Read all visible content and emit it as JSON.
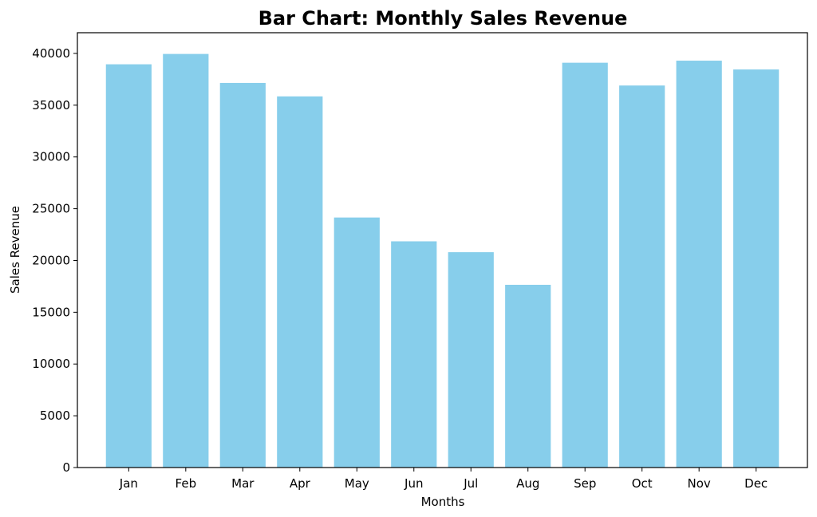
{
  "chart_data": {
    "type": "bar",
    "title": "Bar Chart: Monthly Sales Revenue",
    "xlabel": "Months",
    "ylabel": "Sales Revenue",
    "categories": [
      "Jan",
      "Feb",
      "Mar",
      "Apr",
      "May",
      "Jun",
      "Jul",
      "Aug",
      "Sep",
      "Oct",
      "Nov",
      "Dec"
    ],
    "values": [
      38950,
      39950,
      37150,
      35850,
      24150,
      21850,
      20800,
      17650,
      39100,
      36900,
      39300,
      38450
    ],
    "ylim": [
      0,
      42000
    ],
    "yticks": [
      0,
      5000,
      10000,
      15000,
      20000,
      25000,
      30000,
      35000,
      40000
    ],
    "bar_color": "#87ceeb",
    "grid": false,
    "legend": "none"
  }
}
